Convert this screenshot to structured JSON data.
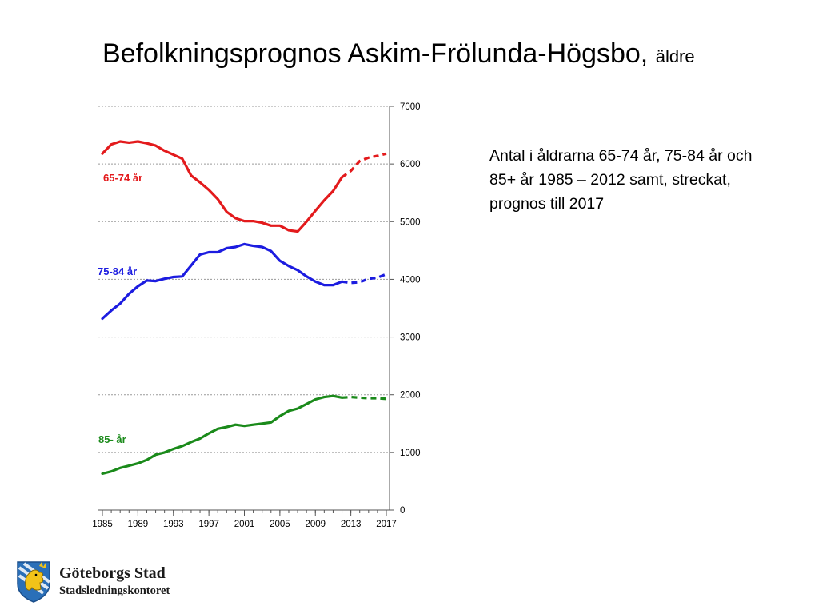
{
  "slide": {
    "title": "Befolkningsprognos Askim-Frölunda-Högsbo,",
    "title_suffix": "äldre",
    "description": "Antal i åldrarna 65-74 år, 75-84 år och 85+ år 1985 – 2012 samt, streckat, prognos till 2017"
  },
  "logo": {
    "org": "Göteborgs Stad",
    "dept": "Stadsledningskontoret",
    "emblem": "gothenburg-lion-shield"
  },
  "chart_data": {
    "type": "line",
    "title": "",
    "xlabel": "",
    "ylabel": "",
    "xlim": [
      1985,
      2017
    ],
    "ylim": [
      0,
      7000
    ],
    "x_ticks": [
      "1985",
      "1989",
      "1993",
      "1997",
      "2001",
      "2005",
      "2009",
      "2013",
      "2017"
    ],
    "y_ticks": [
      "0",
      "1000",
      "2000",
      "3000",
      "4000",
      "5000",
      "6000",
      "7000"
    ],
    "y_axis_side": "right",
    "grid": "horizontal dashed",
    "legend": "inline labels left of each line",
    "forecast_from": 2012,
    "series": [
      {
        "name": "65-74 år",
        "color": "#e31a1c",
        "x": [
          1985,
          1986,
          1987,
          1988,
          1989,
          1990,
          1991,
          1992,
          1993,
          1994,
          1995,
          1996,
          1997,
          1998,
          1999,
          2000,
          2001,
          2002,
          2003,
          2004,
          2005,
          2006,
          2007,
          2008,
          2009,
          2010,
          2011,
          2012,
          2013,
          2014,
          2015,
          2016,
          2017
        ],
        "y": [
          6180,
          6340,
          6390,
          6370,
          6390,
          6360,
          6320,
          6230,
          6160,
          6090,
          5800,
          5680,
          5550,
          5390,
          5170,
          5060,
          5010,
          5010,
          4980,
          4930,
          4930,
          4850,
          4830,
          5000,
          5190,
          5370,
          5530,
          5770,
          5880,
          6050,
          6110,
          6140,
          6180
        ]
      },
      {
        "name": "75-84 år",
        "color": "#1c1ce0",
        "x": [
          1985,
          1986,
          1987,
          1988,
          1989,
          1990,
          1991,
          1992,
          1993,
          1994,
          1995,
          1996,
          1997,
          1998,
          1999,
          2000,
          2001,
          2002,
          2003,
          2004,
          2005,
          2006,
          2007,
          2008,
          2009,
          2010,
          2011,
          2012,
          2013,
          2014,
          2015,
          2016,
          2017
        ],
        "y": [
          3320,
          3460,
          3580,
          3750,
          3880,
          3980,
          3970,
          4010,
          4040,
          4050,
          4240,
          4430,
          4470,
          4470,
          4540,
          4560,
          4610,
          4580,
          4560,
          4490,
          4320,
          4230,
          4160,
          4050,
          3960,
          3900,
          3900,
          3960,
          3940,
          3950,
          4010,
          4030,
          4090
        ]
      },
      {
        "name": "85- år",
        "color": "#1a8a1a",
        "x": [
          1985,
          1986,
          1987,
          1988,
          1989,
          1990,
          1991,
          1992,
          1993,
          1994,
          1995,
          1996,
          1997,
          1998,
          1999,
          2000,
          2001,
          2002,
          2003,
          2004,
          2005,
          2006,
          2007,
          2008,
          2009,
          2010,
          2011,
          2012,
          2013,
          2014,
          2015,
          2016,
          2017
        ],
        "y": [
          630,
          670,
          730,
          770,
          810,
          870,
          960,
          1000,
          1060,
          1110,
          1180,
          1240,
          1330,
          1410,
          1440,
          1480,
          1460,
          1480,
          1500,
          1520,
          1630,
          1720,
          1760,
          1840,
          1920,
          1960,
          1980,
          1950,
          1960,
          1950,
          1940,
          1940,
          1930
        ]
      }
    ]
  }
}
